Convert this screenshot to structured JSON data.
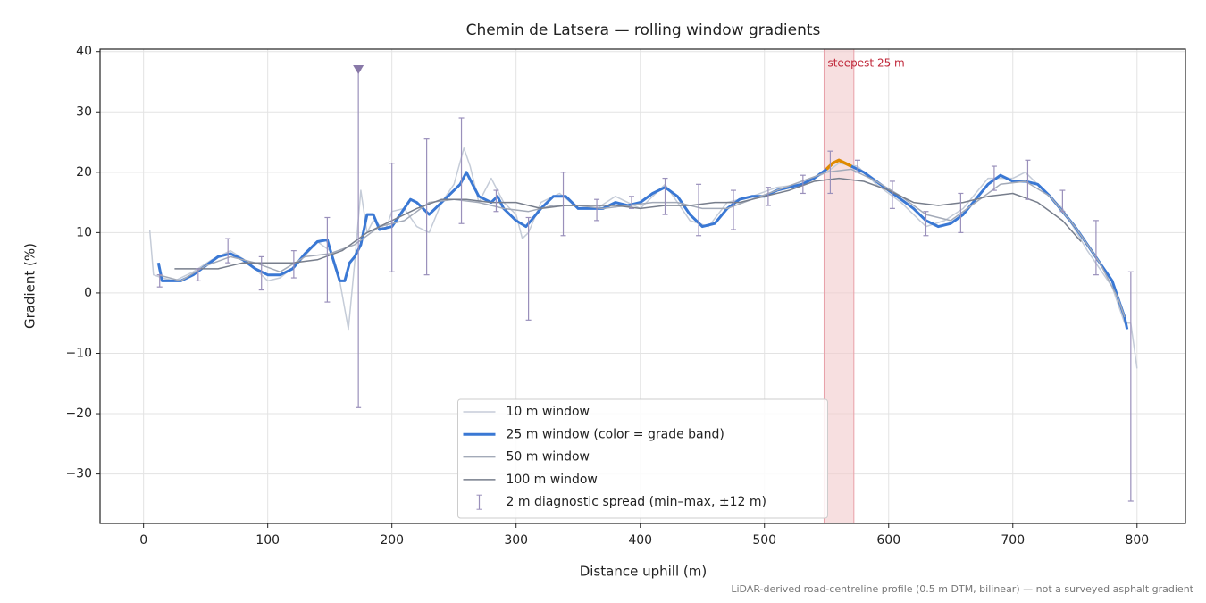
{
  "chart_data": {
    "type": "line",
    "title": "Chemin de Latsera — rolling window gradients",
    "x_label": "Distance uphill (m)",
    "y_label": "Gradient (%)",
    "note": "LiDAR-derived road-centreline profile (0.5 m DTM, bilinear) — not a surveyed asphalt gradient",
    "xlim": [
      -35,
      839
    ],
    "ylim": [
      -38.2,
      40.4
    ],
    "xticks": [
      0,
      100,
      200,
      300,
      400,
      500,
      600,
      700,
      800
    ],
    "yticks": [
      {
        "value": -30,
        "label": "−30"
      },
      {
        "value": -20,
        "label": "−20"
      },
      {
        "value": -10,
        "label": "−10"
      },
      0,
      10,
      20,
      30,
      40
    ],
    "grid": true,
    "legend": "lower center",
    "span": {
      "xlim": [
        548,
        572
      ],
      "color": "#f2c9cc",
      "label": "steepest 25 m"
    },
    "series": [
      {
        "name": "10 m window",
        "color": "#c5ccd8",
        "width": 1.5,
        "x": [
          5,
          8,
          15,
          25,
          40,
          55,
          70,
          85,
          100,
          110,
          125,
          140,
          150,
          158,
          165,
          170,
          175,
          180,
          185,
          195,
          200,
          210,
          220,
          230,
          240,
          250,
          258,
          263,
          270,
          280,
          290,
          300,
          305,
          310,
          320,
          335,
          350,
          365,
          380,
          400,
          420,
          440,
          455,
          470,
          490,
          510,
          530,
          550,
          560,
          575,
          590,
          610,
          630,
          645,
          660,
          680,
          700,
          710,
          725,
          740,
          760,
          780,
          790,
          795,
          800
        ],
        "values": [
          10.5,
          3,
          2.5,
          2,
          3.5,
          5.5,
          7,
          5,
          2,
          2.5,
          5,
          8.5,
          7,
          2,
          -6,
          5,
          17,
          10,
          12,
          10.5,
          13.5,
          14,
          11,
          10,
          15,
          18,
          24,
          21,
          15,
          19,
          15,
          13,
          9,
          10,
          15,
          16.5,
          14,
          14,
          16,
          14,
          18,
          12,
          11,
          15,
          16,
          17.5,
          18,
          20,
          21.5,
          21,
          18,
          15,
          11,
          12,
          14,
          19,
          19,
          20,
          17,
          14,
          7,
          1,
          -5,
          -5,
          -12.5
        ]
      },
      {
        "name": "25 m window (color = grade band)",
        "color": "#3a78d4",
        "width": 3,
        "highlight_color": "#e08a00",
        "x": [
          12,
          15,
          20,
          30,
          40,
          50,
          60,
          70,
          80,
          90,
          100,
          110,
          120,
          130,
          140,
          148,
          152,
          158,
          162,
          166,
          170,
          175,
          180,
          185,
          190,
          200,
          210,
          215,
          220,
          230,
          240,
          250,
          255,
          260,
          265,
          270,
          280,
          285,
          290,
          300,
          308,
          312,
          320,
          330,
          340,
          350,
          360,
          370,
          380,
          390,
          400,
          410,
          420,
          430,
          440,
          450,
          460,
          470,
          480,
          490,
          500,
          510,
          520,
          530,
          540,
          550,
          555,
          560,
          565,
          570,
          580,
          590,
          600,
          610,
          620,
          630,
          640,
          650,
          660,
          670,
          680,
          690,
          700,
          710,
          720,
          730,
          740,
          750,
          760,
          770,
          780,
          785,
          790,
          792
        ],
        "values": [
          5,
          2,
          2,
          2,
          3,
          4.5,
          6,
          6.5,
          5.5,
          4,
          3,
          3,
          4,
          6.5,
          8.5,
          8.8,
          6,
          2,
          2,
          5,
          6,
          8,
          13,
          13,
          10.5,
          11,
          14,
          15.5,
          15,
          13,
          15,
          17,
          18,
          20,
          18,
          16,
          15,
          16,
          14,
          12,
          11,
          12,
          14,
          16,
          16,
          14,
          14,
          14,
          15,
          14.5,
          15,
          16.5,
          17.5,
          16,
          13,
          11,
          11.5,
          14,
          15.5,
          16,
          16,
          17,
          17.5,
          18,
          19,
          20.5,
          21.5,
          22,
          21.5,
          21,
          20,
          18.5,
          17,
          15.5,
          14,
          12,
          11,
          11.5,
          13,
          15.5,
          18,
          19.5,
          18.5,
          18.5,
          18,
          16,
          13.5,
          11,
          8,
          5,
          2,
          -1,
          -4,
          -6
        ]
      },
      {
        "name": "50 m window",
        "color": "#a3aab8",
        "width": 1.5,
        "x": [
          12,
          30,
          50,
          70,
          90,
          110,
          130,
          150,
          170,
          190,
          210,
          230,
          250,
          270,
          290,
          310,
          330,
          350,
          370,
          390,
          410,
          430,
          450,
          470,
          490,
          510,
          530,
          550,
          570,
          590,
          610,
          630,
          650,
          670,
          690,
          710,
          730,
          750,
          770,
          785,
          790
        ],
        "values": [
          3,
          2,
          4.5,
          6,
          5,
          3.5,
          6,
          6.5,
          8,
          11,
          12,
          15,
          15.5,
          15,
          14,
          13.5,
          14.5,
          14.5,
          14,
          14.5,
          15,
          15,
          14,
          14,
          15.5,
          17,
          18.5,
          20,
          20.5,
          18.5,
          16,
          13,
          12,
          15,
          18,
          18.5,
          16,
          11,
          5,
          -1,
          -4
        ]
      },
      {
        "name": "100 m window",
        "color": "#777e8c",
        "width": 1.5,
        "x": [
          25,
          40,
          60,
          80,
          100,
          120,
          140,
          160,
          180,
          200,
          220,
          240,
          260,
          280,
          300,
          320,
          340,
          360,
          380,
          400,
          420,
          440,
          460,
          480,
          500,
          520,
          540,
          560,
          580,
          600,
          620,
          640,
          660,
          680,
          700,
          720,
          740,
          755
        ],
        "values": [
          4,
          4,
          4,
          5,
          5,
          5,
          5.5,
          7,
          10,
          12,
          14,
          15.5,
          15.5,
          15,
          15,
          14,
          14.5,
          14.5,
          14.5,
          14,
          14.5,
          14.5,
          15,
          15,
          16,
          17,
          18.5,
          19,
          18.5,
          17,
          15,
          14.5,
          15,
          16,
          16.5,
          15,
          12,
          8.5
        ]
      }
    ],
    "error_bars": {
      "name": "2 m diagnostic spread (min–max, ±12 m)",
      "color": "#9a90bb",
      "x": [
        13,
        44,
        68,
        95,
        121,
        148,
        173,
        200,
        228,
        256,
        284,
        310,
        338,
        365,
        393,
        420,
        447,
        475,
        503,
        531,
        553,
        575,
        603,
        630,
        658,
        685,
        712,
        740,
        767,
        795
      ],
      "low": [
        1,
        2,
        5,
        0.5,
        2.5,
        -1.5,
        -19,
        3.5,
        3,
        11.5,
        13.5,
        -4.5,
        9.5,
        12,
        14,
        13,
        9.5,
        10.5,
        14.5,
        16.5,
        16.5,
        20,
        14,
        9.5,
        10,
        17,
        15.5,
        13.5,
        3,
        -34.5
      ],
      "high": [
        3,
        4,
        9,
        6,
        7,
        12.5,
        37,
        21.5,
        25.5,
        29,
        17,
        12.5,
        20,
        15.5,
        16,
        19,
        18,
        17,
        17.5,
        19.5,
        23.5,
        22,
        18.5,
        13.5,
        16.5,
        21,
        22,
        17,
        12,
        3.5
      ]
    },
    "markers": [
      {
        "x": 173,
        "y": 37,
        "color": "#8878a8"
      }
    ]
  }
}
